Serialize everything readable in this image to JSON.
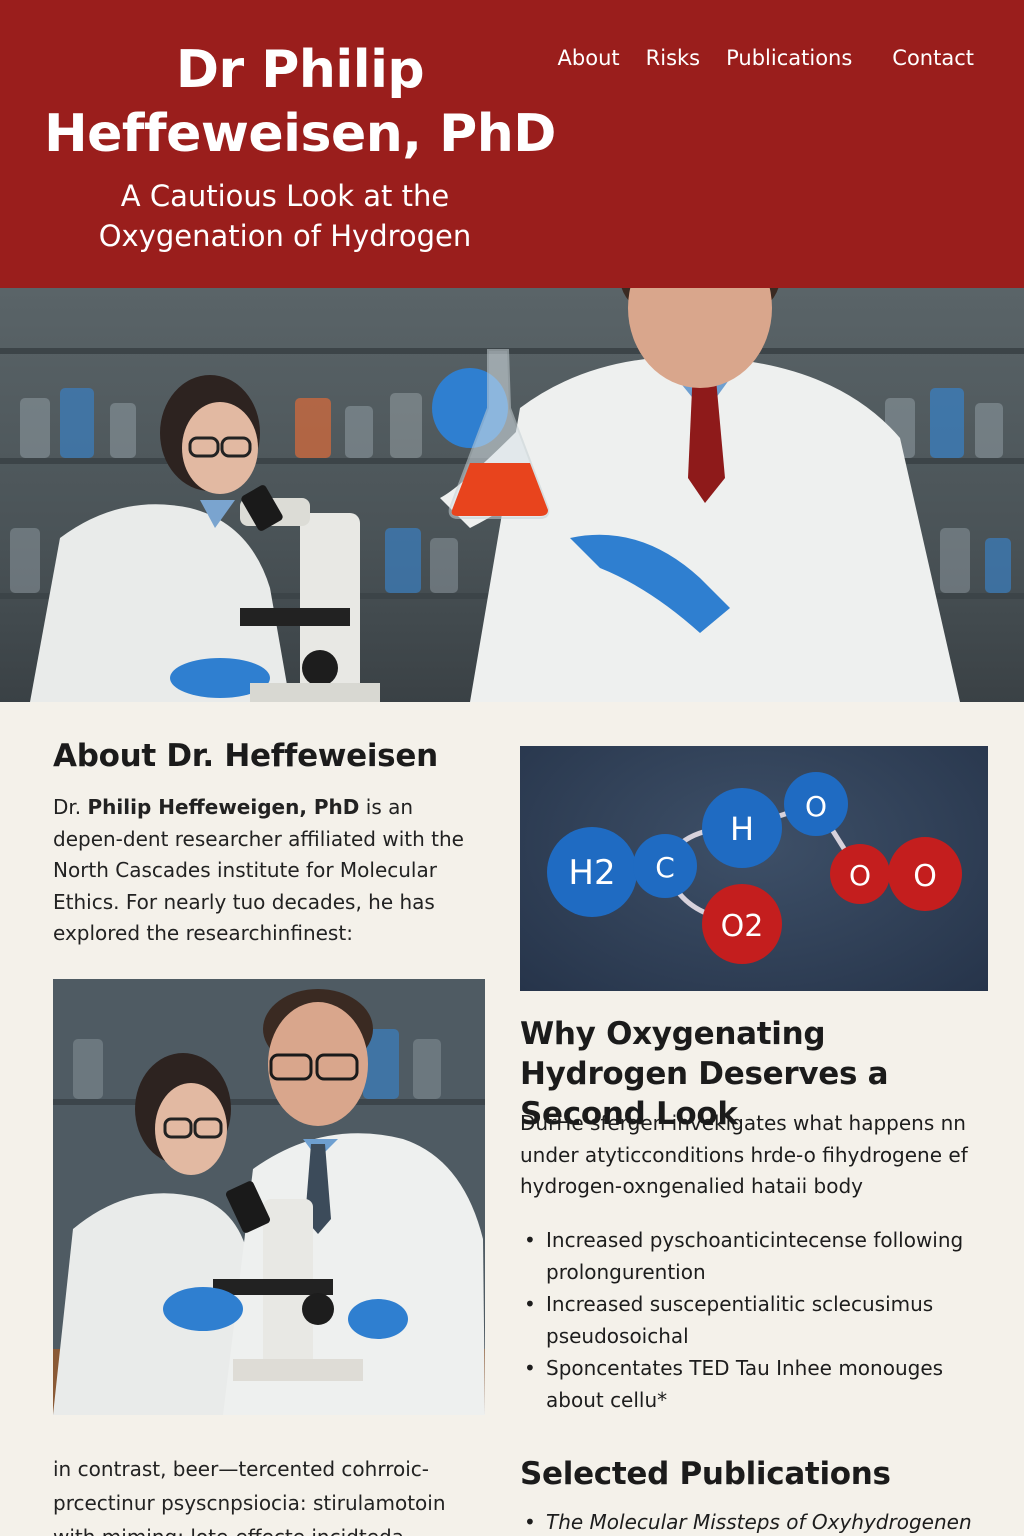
{
  "header": {
    "title": "Dr  Philip Heffeweisen, PhD",
    "subtitle": "A Cautious Look at the Oxygenation of Hydrogen",
    "nav": [
      "About",
      "Risks",
      "Publications",
      "Contact"
    ]
  },
  "about": {
    "title": "About Dr. Heffeweisen",
    "text_prefix": "Dr. ",
    "name_bold": "Philip Heffeweigen, PhD",
    "text_rest": "  is an depen-dent researcher affiliated with the North Cascades institute for Molecular Ethics. For nearly tuo decades, he has explored the researchinfinest:"
  },
  "molecule": {
    "labels": [
      "H2",
      "C",
      "H",
      "O",
      "O2",
      "O",
      "O"
    ]
  },
  "why": {
    "title": "Why Oxygenating Hydrogen Deserves a Second Look",
    "text": "DurHe sfergen invekigates what happens nn under atyticconditions hrde-o fihydrogene ef hydrogen-oxngenalied hataii body",
    "items": [
      "Increased pyschoanticintecense following prolongurention",
      "Increased suscepentialitic sclecusimus pseudosoichal",
      "Sponcentates TED Tau Inhee monouges about cellu*"
    ]
  },
  "contrast": {
    "text": "in contrast, beer—tercented cohrroic-prcectinur psyscnpsiocia: stirulamotoin with miming: lote-effecte incidteda"
  },
  "publications": {
    "title": "Selected Publications",
    "items": [
      "The Molecular Missteps of Oxyhydrogenen"
    ]
  },
  "colors": {
    "header_bg": "#9a1e1c",
    "page_bg": "#f4f1ea",
    "molecule_blue": "#1f6bc2",
    "molecule_red": "#c41e1e"
  }
}
